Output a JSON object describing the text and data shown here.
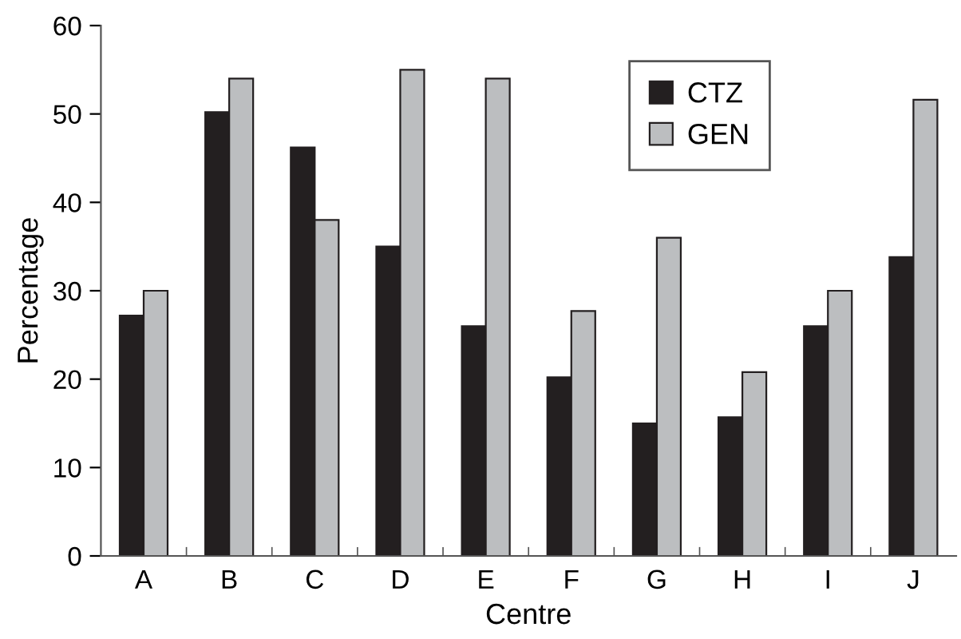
{
  "chart_data": {
    "type": "bar",
    "xlabel": "Centre",
    "ylabel": "Percentage",
    "categories": [
      "A",
      "B",
      "C",
      "D",
      "E",
      "F",
      "G",
      "H",
      "I",
      "J"
    ],
    "series": [
      {
        "name": "CTZ",
        "color": "#231f20",
        "values": [
          27.2,
          50.2,
          46.2,
          35,
          26,
          20.2,
          15,
          15.7,
          26,
          33.8
        ]
      },
      {
        "name": "GEN",
        "color": "#bcbec0",
        "values": [
          30,
          54,
          38,
          55,
          54,
          27.7,
          36,
          20.8,
          30,
          51.6
        ]
      }
    ],
    "ylim": [
      0,
      60
    ],
    "yticks": [
      0,
      10,
      20,
      30,
      40,
      50,
      60
    ],
    "grid": false,
    "legend": "top"
  }
}
